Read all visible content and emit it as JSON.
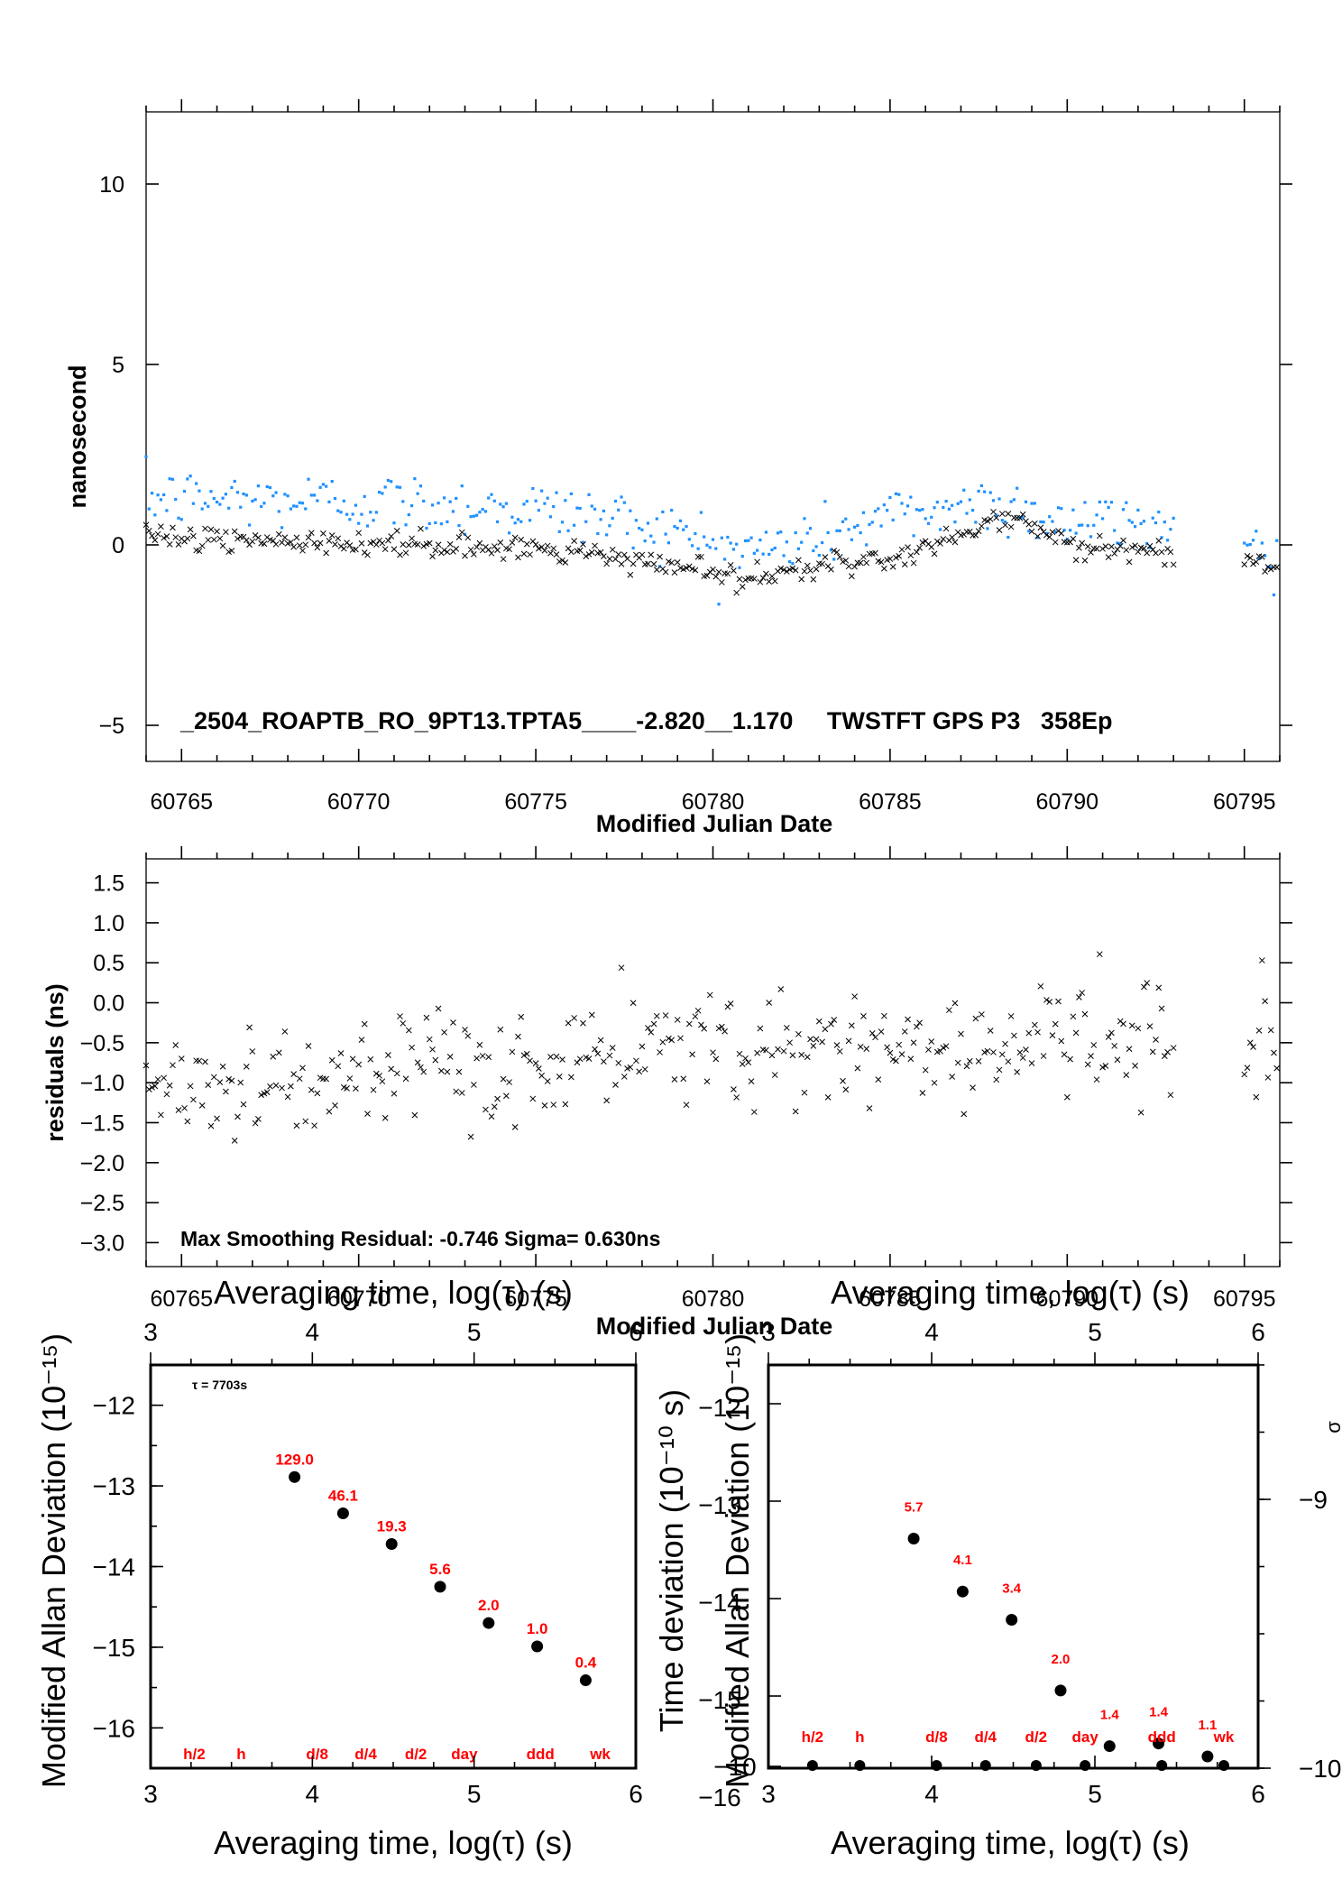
{
  "chart_data": [
    {
      "type": "scatter",
      "xlabel": "Modified Julian Date",
      "ylabel": "nanosecond",
      "xlim": [
        60764,
        60796
      ],
      "ylim": [
        -6,
        12
      ],
      "x_ticks": [
        "60765",
        "60770",
        "60775",
        "60780",
        "60785",
        "60790",
        "60795"
      ],
      "y_ticks": [
        "10",
        "5",
        "0",
        "−5"
      ],
      "annotation": "_2504_ROAPTB_RO_9PT13.TPTA5____-2.820__1.170     TWSTFT GPS P3   358Ep",
      "series": [
        {
          "marker": "dot",
          "color": "#1e90ff",
          "segments": [
            {
              "x_range": [
                60764,
                60793
              ],
              "mean": [
                [
                  60764,
                  1.3
                ],
                [
                  60770,
                  1.2
                ],
                [
                  60775,
                  1.0
                ],
                [
                  60778,
                  0.6
                ],
                [
                  60781,
                  -0.2
                ],
                [
                  60783,
                  0.2
                ],
                [
                  60785,
                  0.8
                ],
                [
                  60788,
                  1.2
                ],
                [
                  60790,
                  0.6
                ],
                [
                  60793,
                  0.6
                ]
              ],
              "spread": 0.75
            },
            {
              "x_range": [
                60795,
                60796
              ],
              "mean": [
                [
                  60795,
                  0.1
                ],
                [
                  60796,
                  -0.3
                ]
              ],
              "spread": 0.5
            }
          ]
        },
        {
          "marker": "x",
          "color": "#000000",
          "segments": [
            {
              "x_range": [
                60764,
                60793
              ],
              "mean": [
                [
                  60764,
                  0.4
                ],
                [
                  60765,
                  0.2
                ],
                [
                  60770,
                  0.0
                ],
                [
                  60775,
                  -0.1
                ],
                [
                  60778,
                  -0.4
                ],
                [
                  60781,
                  -1.0
                ],
                [
                  60783,
                  -0.6
                ],
                [
                  60785,
                  -0.4
                ],
                [
                  60787,
                  0.3
                ],
                [
                  60788.5,
                  0.8
                ],
                [
                  60790,
                  0.0
                ],
                [
                  60793,
                  -0.2
                ]
              ],
              "spread": 0.3
            },
            {
              "x_range": [
                60795,
                60796
              ],
              "mean": [
                [
                  60795,
                  -0.3
                ],
                [
                  60796,
                  -0.7
                ]
              ],
              "spread": 0.25
            }
          ]
        }
      ]
    },
    {
      "type": "scatter",
      "xlabel": "Modified Julian Date",
      "ylabel": "residuals (ns)",
      "xlim": [
        60764,
        60796
      ],
      "ylim": [
        -3.3,
        1.8
      ],
      "x_ticks": [
        "60765",
        "60770",
        "60775",
        "60780",
        "60785",
        "60790",
        "60795"
      ],
      "y_ticks": [
        "1.5",
        "1.0",
        "0.5",
        "0.0",
        "−0.5",
        "−1.0",
        "−1.5",
        "−2.0",
        "−2.5",
        "−3.0"
      ],
      "annotation": "Max Smoothing Residual: -0.746  Sigma= 0.630ns",
      "series": [
        {
          "marker": "x",
          "color": "#000000",
          "segments": [
            {
              "x_range": [
                60764,
                60793
              ],
              "mean": [
                [
                  60764,
                  -1.0
                ],
                [
                  60770,
                  -1.0
                ],
                [
                  60775,
                  -0.8
                ],
                [
                  60780,
                  -0.5
                ],
                [
                  60785,
                  -0.6
                ],
                [
                  60788,
                  -0.5
                ],
                [
                  60793,
                  -0.5
                ]
              ],
              "spread": 0.65
            },
            {
              "x_range": [
                60795,
                60796
              ],
              "mean": [
                [
                  60795,
                  -0.3
                ],
                [
                  60796,
                  -0.3
                ]
              ],
              "spread": 0.8
            }
          ]
        }
      ]
    },
    {
      "type": "scatter",
      "xlabel": "Averaging time, log(τ) (s)",
      "ylabel": "Modified Allan Deviation (10⁻¹⁵)",
      "xlim": [
        3,
        6
      ],
      "ylim": [
        -16.5,
        -11.5
      ],
      "x_ticks": [
        "3",
        "4",
        "5",
        "6"
      ],
      "y_ticks": [
        "−12",
        "−13",
        "−14",
        "−15",
        "−16"
      ],
      "annotation": "τ = 7703s",
      "points": [
        {
          "x": 3.89,
          "y": -12.89,
          "label": "129.0"
        },
        {
          "x": 4.19,
          "y": -13.34,
          "label": "46.1"
        },
        {
          "x": 4.49,
          "y": -13.72,
          "label": "19.3"
        },
        {
          "x": 4.79,
          "y": -14.25,
          "label": "5.6"
        },
        {
          "x": 5.09,
          "y": -14.7,
          "label": "2.0"
        },
        {
          "x": 5.39,
          "y": -14.99,
          "label": "1.0"
        },
        {
          "x": 5.69,
          "y": -15.41,
          "label": "0.4"
        }
      ],
      "interval_labels": [
        {
          "x": 3.27,
          "label": "h/2"
        },
        {
          "x": 3.56,
          "label": "h"
        },
        {
          "x": 4.03,
          "label": "d/8"
        },
        {
          "x": 4.33,
          "label": "d/4"
        },
        {
          "x": 4.64,
          "label": "d/2"
        },
        {
          "x": 4.94,
          "label": "day"
        },
        {
          "x": 5.41,
          "label": "ddd"
        },
        {
          "x": 5.78,
          "label": "wk"
        }
      ]
    },
    {
      "type": "scatter",
      "xlabel": "Averaging time, log(τ) (s)",
      "ylabel_left": "Modified Allan Deviation (10⁻¹⁵)",
      "ylabel_left_overlap": "Time deviation (10⁻¹⁰ s)",
      "ylabel_right": "σ",
      "xlim": [
        3,
        6
      ],
      "ylim": [
        -10,
        -8.5
      ],
      "x_ticks": [
        "3",
        "4",
        "5",
        "6"
      ],
      "y_ticks_right": [
        "−9",
        "−10"
      ],
      "y_ticks_left_overlap": [
        "−12",
        "−13",
        "−14",
        "−15",
        "−16",
        "−10"
      ],
      "points": [
        {
          "x": 3.89,
          "y": -9.146,
          "label": "5.7"
        },
        {
          "x": 4.19,
          "y": -9.343,
          "label": "4.1"
        },
        {
          "x": 4.49,
          "y": -9.448,
          "label": "3.4"
        },
        {
          "x": 4.79,
          "y": -9.711,
          "label": "2.0"
        },
        {
          "x": 5.09,
          "y": -9.918,
          "label": "1.4"
        },
        {
          "x": 5.39,
          "y": -9.908,
          "label": "1.4"
        },
        {
          "x": 5.69,
          "y": -10.0,
          "label": "1.1"
        }
      ],
      "base_points_x": [
        3.27,
        3.56,
        4.03,
        4.33,
        4.64,
        4.94,
        5.41,
        5.79
      ],
      "interval_labels": [
        {
          "x": 3.27,
          "label": "h/2"
        },
        {
          "x": 3.56,
          "label": "h"
        },
        {
          "x": 4.03,
          "label": "d/8"
        },
        {
          "x": 4.33,
          "label": "d/4"
        },
        {
          "x": 4.64,
          "label": "d/2"
        },
        {
          "x": 4.94,
          "label": "day"
        },
        {
          "x": 5.41,
          "label": "ddd"
        },
        {
          "x": 5.79,
          "label": "wk"
        }
      ]
    }
  ]
}
